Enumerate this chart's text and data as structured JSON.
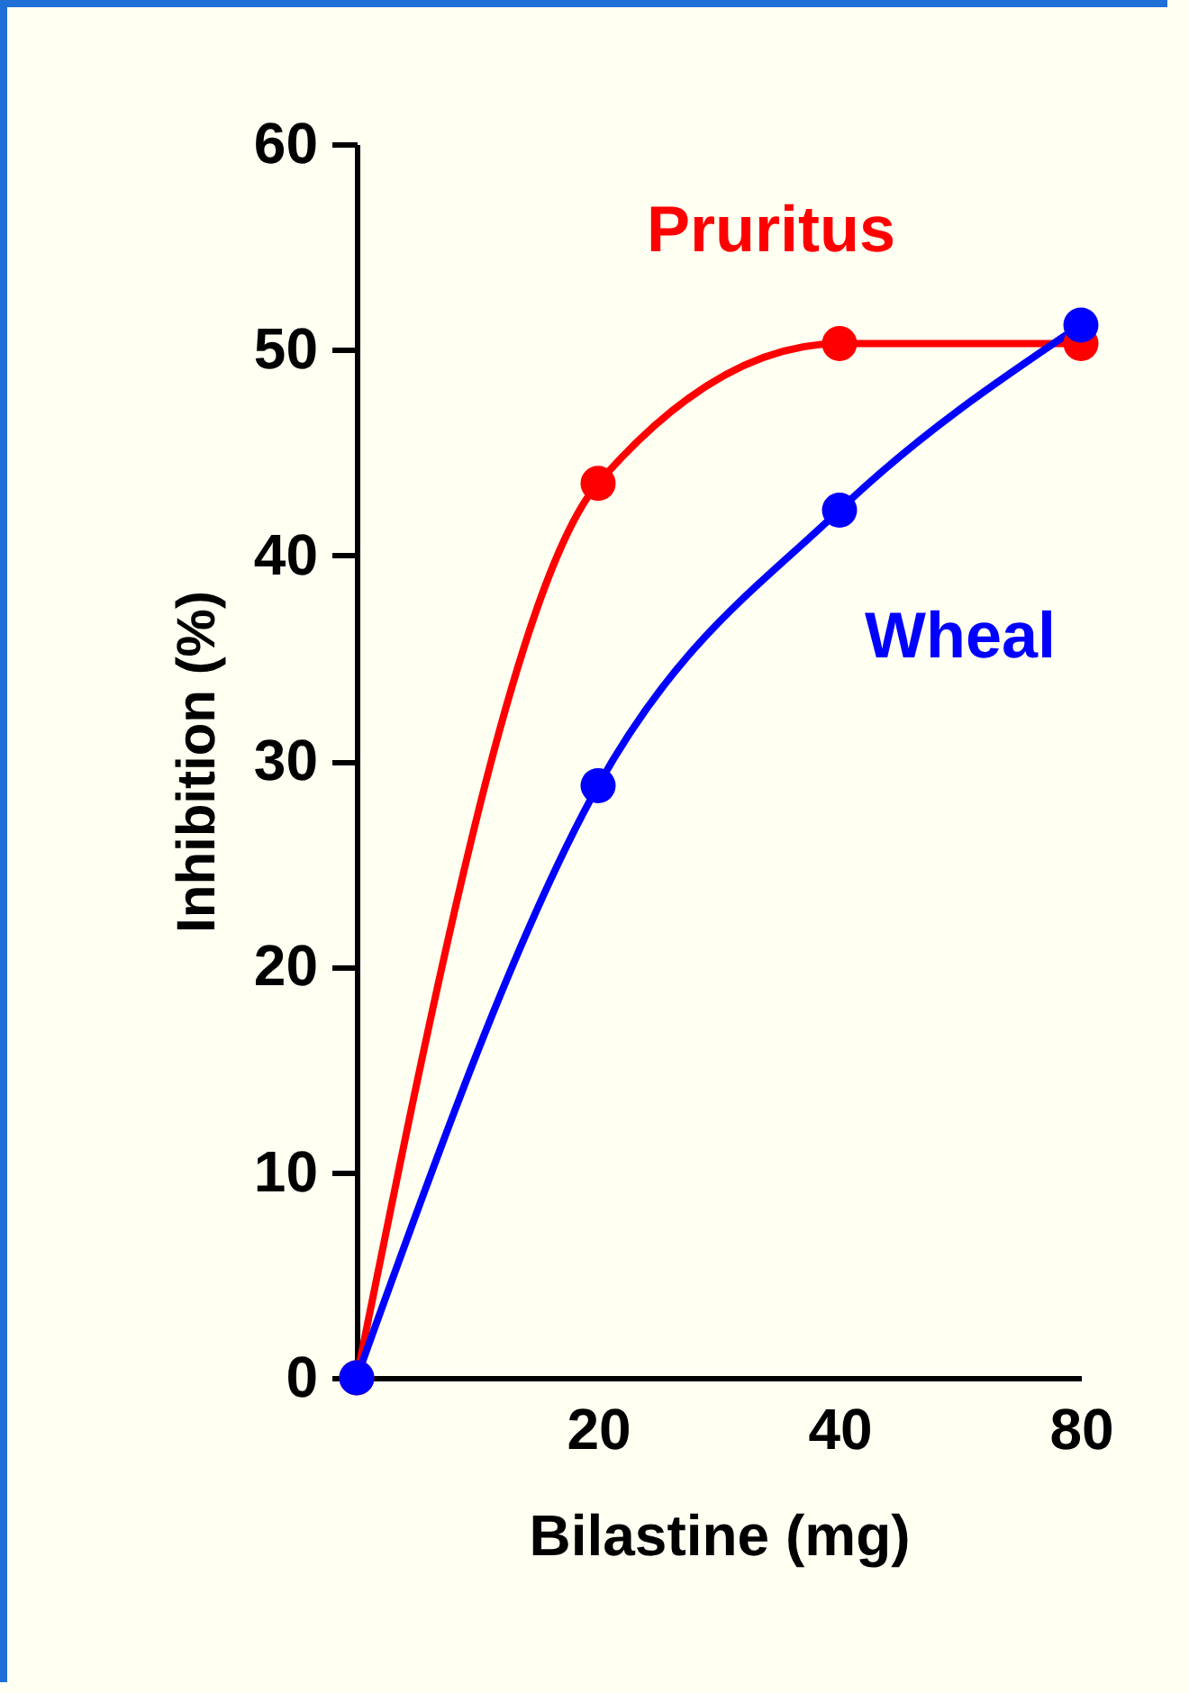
{
  "chart_data": {
    "type": "line",
    "xlabel": "Bilastine (mg)",
    "ylabel": "Inhibition (%)",
    "categories": [
      null,
      "20",
      "40",
      "80"
    ],
    "series": [
      {
        "name": "Pruritus",
        "color": "#ff0000",
        "values": [
          0,
          43.5,
          50.3,
          50.3
        ]
      },
      {
        "name": "Wheal",
        "color": "#0000ff",
        "values": [
          0,
          28.8,
          42.2,
          51.2
        ]
      }
    ],
    "ylim": [
      0,
      60
    ],
    "yticks": [
      0,
      10,
      20,
      30,
      40,
      50,
      60
    ],
    "grid": false,
    "legend": false,
    "marker": "circle",
    "line_style": "solid"
  }
}
